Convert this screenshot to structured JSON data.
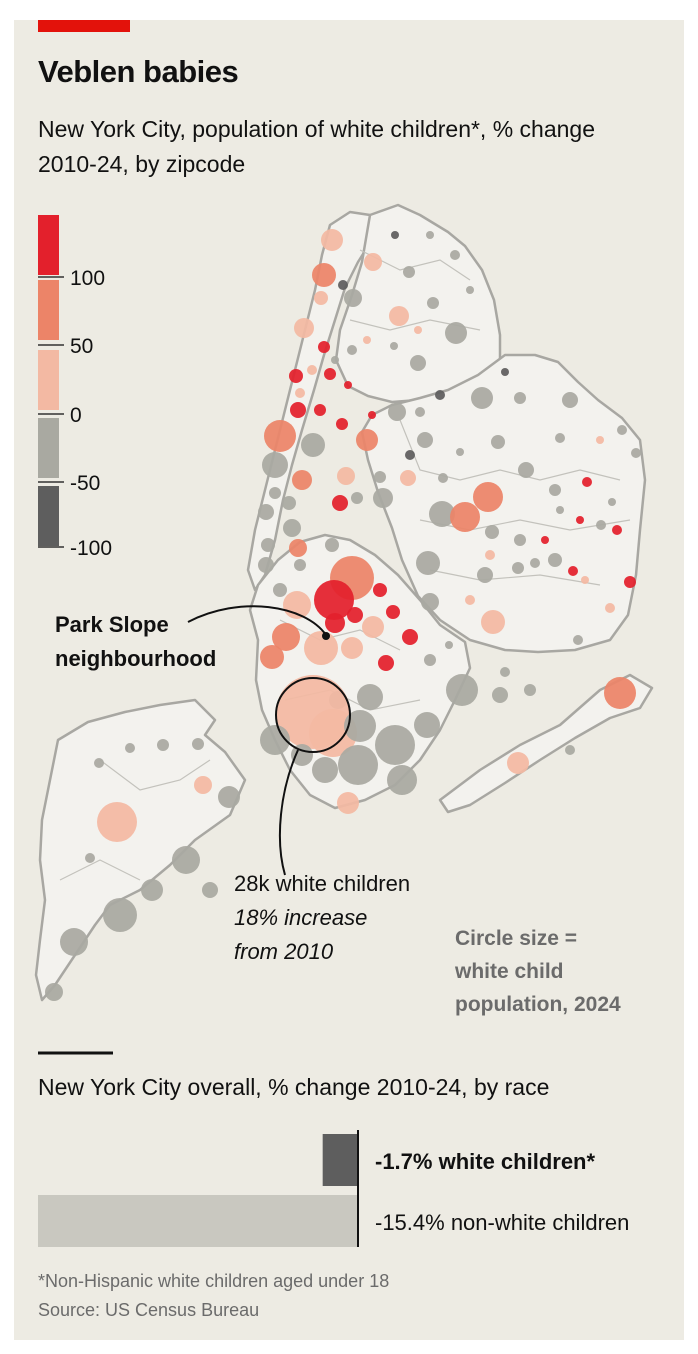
{
  "header": {
    "title": "Veblen babies",
    "subtitle": "New York City, population of white children*, % change 2010-24, by zipcode"
  },
  "colors": {
    "accent": "#e3120b",
    "background": "#edebe3",
    "bin_gt100": "#e3202c",
    "bin_50_100": "#ec8468",
    "bin_0_50": "#f3b9a3",
    "bin_m50_0": "#a9a9a1",
    "bin_lt_m50": "#5e5e5e",
    "borough_fill": "#f3f2ee",
    "borough_line": "#a8a7a2"
  },
  "legend": {
    "ticks": [
      "100",
      "50",
      "0",
      "-50",
      "-100"
    ],
    "size_note": [
      "Circle size =",
      "white child",
      "population, 2024"
    ]
  },
  "map_annotations": {
    "park_slope": [
      "Park Slope",
      "neighbourhood"
    ],
    "callout": [
      "28k white children",
      "18% increase",
      "from 2010"
    ]
  },
  "chart_data": [
    {
      "type": "map",
      "title": "New York City, population of white children*, % change 2010-24, by zipcode",
      "color_bins": [
        "> 100",
        "50 to 100",
        "0 to 50",
        "-50 to 0",
        "< -50"
      ],
      "highlight": {
        "label": "Park Slope neighbourhood"
      },
      "callout": {
        "white_children_2024": 28000,
        "pct_change_2010_24": 18
      }
    },
    {
      "type": "bar",
      "title": "New York City overall, % change 2010-24, by race",
      "categories": [
        "white children*",
        "non-white children"
      ],
      "values": [
        -1.7,
        -15.4
      ],
      "value_labels": [
        "-1.7%",
        "-15.4%"
      ],
      "colors": [
        "#5e5e5e",
        "#c9c8c0"
      ]
    }
  ],
  "footnotes": {
    "note": "*Non-Hispanic white children aged under 18",
    "source": "Source: US Census Bureau"
  }
}
